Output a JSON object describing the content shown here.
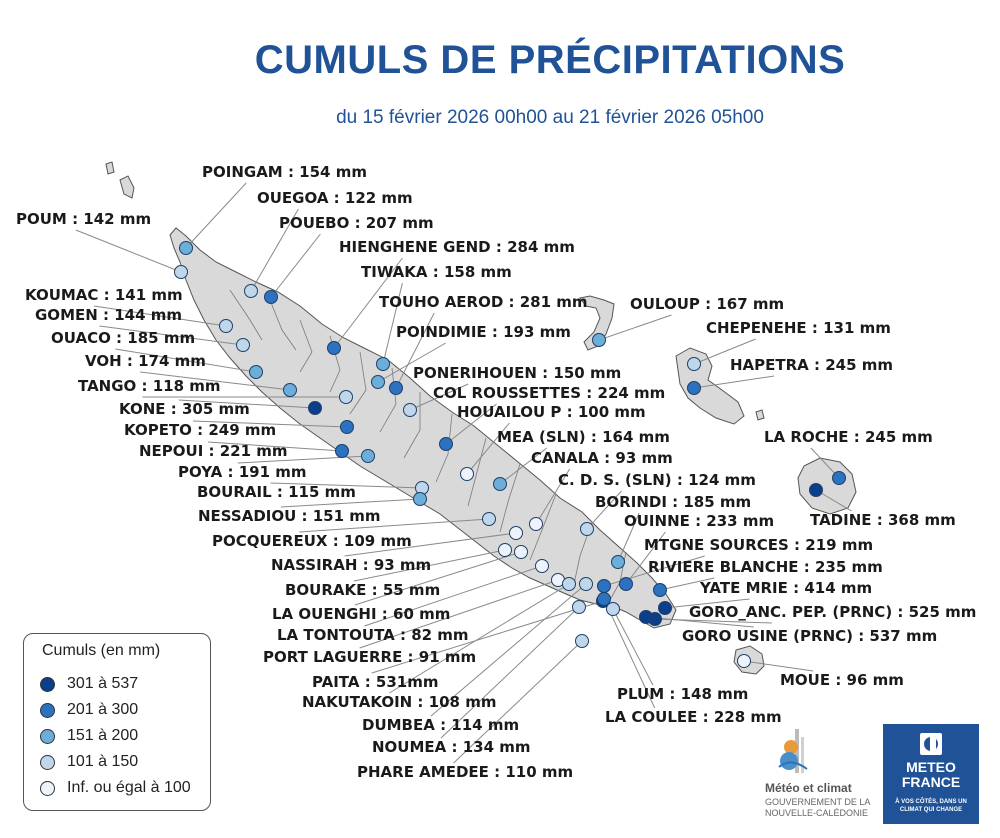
{
  "title": "CUMULS DE PRÉCIPITATIONS",
  "subtitle": "du 15 février 2026 00h00 au 21 février 2026 05h00",
  "colors": {
    "class_5": "#0b3f8c",
    "class_4": "#2c72c0",
    "class_3": "#6aaed9",
    "class_2": "#bfd6eb",
    "class_1": "#eef2fb",
    "land": "#d9d9d9",
    "title": "#1f5296"
  },
  "legend": {
    "title": "Cumuls (en mm)",
    "items": [
      {
        "label": "301 à 537",
        "class": 5
      },
      {
        "label": "201 à 300",
        "class": 4
      },
      {
        "label": "151 à 200",
        "class": 3
      },
      {
        "label": "101 à 150",
        "class": 2
      },
      {
        "label": "Inf. ou égal à 100",
        "class": 1
      }
    ]
  },
  "stations": [
    {
      "id": "poingam",
      "label": "POINGAM : 154 mm",
      "value": 154,
      "class": 3
    },
    {
      "id": "ouegoa",
      "label": "OUEGOA : 122 mm",
      "value": 122,
      "class": 2
    },
    {
      "id": "pouebo",
      "label": "POUEBO : 207 mm",
      "value": 207,
      "class": 4
    },
    {
      "id": "poum",
      "label": "POUM : 142 mm",
      "value": 142,
      "class": 2
    },
    {
      "id": "hienghene",
      "label": "HIENGHENE GEND : 284 mm",
      "value": 284,
      "class": 4
    },
    {
      "id": "tiwaka",
      "label": "TIWAKA : 158 mm",
      "value": 158,
      "class": 3
    },
    {
      "id": "koumac",
      "label": "KOUMAC : 141 mm",
      "value": 141,
      "class": 2
    },
    {
      "id": "touho",
      "label": "TOUHO AEROD : 281 mm",
      "value": 281,
      "class": 4
    },
    {
      "id": "ouloup",
      "label": "OULOUP : 167 mm",
      "value": 167,
      "class": 3
    },
    {
      "id": "gomen",
      "label": "GOMEN : 144 mm",
      "value": 144,
      "class": 2
    },
    {
      "id": "ouaco",
      "label": "OUACO : 185 mm",
      "value": 185,
      "class": 3
    },
    {
      "id": "poindimie",
      "label": "POINDIMIE : 193 mm",
      "value": 193,
      "class": 3
    },
    {
      "id": "chepenehe",
      "label": "CHEPENEHE : 131 mm",
      "value": 131,
      "class": 2
    },
    {
      "id": "voh",
      "label": "VOH : 174 mm",
      "value": 174,
      "class": 3
    },
    {
      "id": "hapetra",
      "label": "HAPETRA : 245 mm",
      "value": 245,
      "class": 4
    },
    {
      "id": "ponerihouen",
      "label": "PONERIHOUEN : 150 mm",
      "value": 150,
      "class": 2
    },
    {
      "id": "tango",
      "label": "TANGO : 118 mm",
      "value": 118,
      "class": 2
    },
    {
      "id": "col_roussettes",
      "label": "COL ROUSSETTES : 224 mm",
      "value": 224,
      "class": 4
    },
    {
      "id": "kone",
      "label": "KONE : 305 mm",
      "value": 305,
      "class": 5
    },
    {
      "id": "houailou",
      "label": "HOUAILOU P : 100 mm",
      "value": 100,
      "class": 1
    },
    {
      "id": "kopeto",
      "label": "KOPETO : 249 mm",
      "value": 249,
      "class": 4
    },
    {
      "id": "la_roche",
      "label": "LA ROCHE : 245 mm",
      "value": 245,
      "class": 4
    },
    {
      "id": "mea",
      "label": "MEA (SLN) : 164 mm",
      "value": 164,
      "class": 3
    },
    {
      "id": "nepoui",
      "label": "NEPOUI : 221 mm",
      "value": 221,
      "class": 4
    },
    {
      "id": "canala",
      "label": "CANALA : 93 mm",
      "value": 93,
      "class": 1
    },
    {
      "id": "poya",
      "label": "POYA : 191 mm",
      "value": 191,
      "class": 3
    },
    {
      "id": "cds",
      "label": "C. D. S. (SLN) : 124 mm",
      "value": 124,
      "class": 2
    },
    {
      "id": "bourail",
      "label": "BOURAIL : 115 mm",
      "value": 115,
      "class": 2
    },
    {
      "id": "borindi",
      "label": "BORINDI : 185 mm",
      "value": 185,
      "class": 3
    },
    {
      "id": "nessadiou",
      "label": "NESSADIOU : 151 mm",
      "value": 151,
      "class": 3
    },
    {
      "id": "ouinne",
      "label": "OUINNE : 233 mm",
      "value": 233,
      "class": 4
    },
    {
      "id": "tadine",
      "label": "TADINE : 368 mm",
      "value": 368,
      "class": 5
    },
    {
      "id": "pocquereux",
      "label": "POCQUEREUX : 109 mm",
      "value": 109,
      "class": 2
    },
    {
      "id": "mtgne_sources",
      "label": "MTGNE SOURCES : 219 mm",
      "value": 219,
      "class": 4
    },
    {
      "id": "nassirah",
      "label": "NASSIRAH : 93 mm",
      "value": 93,
      "class": 1
    },
    {
      "id": "riviere_blanche",
      "label": "RIVIERE BLANCHE : 235 mm",
      "value": 235,
      "class": 4
    },
    {
      "id": "bourake",
      "label": "BOURAKE : 55 mm",
      "value": 55,
      "class": 1
    },
    {
      "id": "yate",
      "label": "YATE MRIE : 414 mm",
      "value": 414,
      "class": 5
    },
    {
      "id": "la_ouenghi",
      "label": "LA OUENGHI : 60 mm",
      "value": 60,
      "class": 1
    },
    {
      "id": "goro_anc",
      "label": "GORO_ANC. PEP. (PRNC) : 525 mm",
      "value": 525,
      "class": 5
    },
    {
      "id": "la_tontouta",
      "label": "LA TONTOUTA : 82 mm",
      "value": 82,
      "class": 1
    },
    {
      "id": "goro_usine",
      "label": "GORO USINE (PRNC) : 537 mm",
      "value": 537,
      "class": 5
    },
    {
      "id": "port_laguerre",
      "label": "PORT LAGUERRE : 91 mm",
      "value": 91,
      "class": 1
    },
    {
      "id": "moue",
      "label": "MOUE : 96 mm",
      "value": 96,
      "class": 1
    },
    {
      "id": "paita",
      "label": "PAITA : 531mm",
      "value": 531,
      "class": 5
    },
    {
      "id": "plum",
      "label": "PLUM : 148 mm",
      "value": 148,
      "class": 2
    },
    {
      "id": "nakutakoin",
      "label": "NAKUTAKOIN : 108 mm",
      "value": 108,
      "class": 2
    },
    {
      "id": "la_coulee",
      "label": "LA COULEE : 228 mm",
      "value": 228,
      "class": 4
    },
    {
      "id": "dumbea",
      "label": "DUMBEA : 114 mm",
      "value": 114,
      "class": 2
    },
    {
      "id": "noumea",
      "label": "NOUMEA : 134 mm",
      "value": 134,
      "class": 2
    },
    {
      "id": "phare_amedee",
      "label": "PHARE AMEDEE : 110 mm",
      "value": 110,
      "class": 2
    }
  ],
  "logos": {
    "mc_name": "Météo et climat",
    "mc_gov_line1": "GOUVERNEMENT DE LA",
    "mc_gov_line2": "NOUVELLE-CALÉDONIE",
    "mf_name_line1": "METEO",
    "mf_name_line2": "FRANCE",
    "mf_tag_line1": "À VOS CÔTÉS, DANS UN",
    "mf_tag_line2": "CLIMAT QUI CHANGE"
  }
}
